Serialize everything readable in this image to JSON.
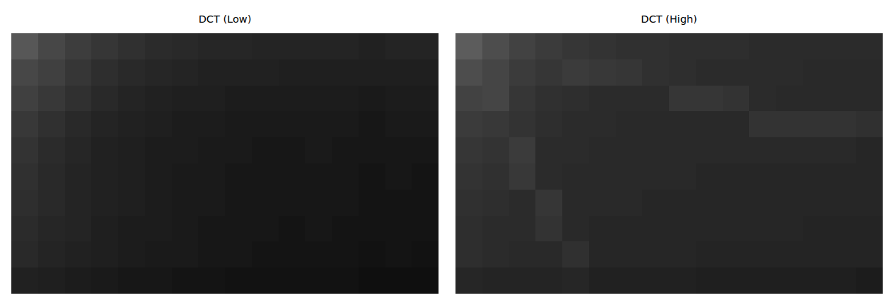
{
  "chart_data": [
    {
      "type": "heatmap",
      "title": "DCT (Low)",
      "color": "gray",
      "clim": [
        0,
        1
      ],
      "tick_labels": false,
      "cells": [
        [
          0.34,
          0.28,
          0.24,
          0.21,
          0.19,
          0.17,
          0.16,
          0.15,
          0.15,
          0.14,
          0.14,
          0.14,
          0.14,
          0.13,
          0.14,
          0.14
        ],
        [
          0.28,
          0.25,
          0.21,
          0.18,
          0.16,
          0.15,
          0.14,
          0.13,
          0.13,
          0.13,
          0.12,
          0.12,
          0.12,
          0.12,
          0.12,
          0.12
        ],
        [
          0.25,
          0.22,
          0.19,
          0.16,
          0.14,
          0.13,
          0.12,
          0.12,
          0.11,
          0.11,
          0.11,
          0.11,
          0.11,
          0.1,
          0.11,
          0.11
        ],
        [
          0.22,
          0.19,
          0.16,
          0.14,
          0.13,
          0.12,
          0.11,
          0.11,
          0.1,
          0.1,
          0.1,
          0.1,
          0.1,
          0.09,
          0.1,
          0.1
        ],
        [
          0.2,
          0.17,
          0.15,
          0.13,
          0.12,
          0.11,
          0.11,
          0.1,
          0.1,
          0.09,
          0.09,
          0.1,
          0.09,
          0.09,
          0.09,
          0.09
        ],
        [
          0.19,
          0.16,
          0.14,
          0.13,
          0.12,
          0.11,
          0.1,
          0.1,
          0.09,
          0.09,
          0.09,
          0.09,
          0.09,
          0.08,
          0.09,
          0.08
        ],
        [
          0.18,
          0.16,
          0.14,
          0.13,
          0.12,
          0.11,
          0.1,
          0.1,
          0.09,
          0.09,
          0.09,
          0.09,
          0.09,
          0.08,
          0.08,
          0.08
        ],
        [
          0.17,
          0.15,
          0.14,
          0.12,
          0.11,
          0.11,
          0.1,
          0.09,
          0.09,
          0.09,
          0.08,
          0.09,
          0.08,
          0.08,
          0.08,
          0.08
        ],
        [
          0.16,
          0.14,
          0.13,
          0.12,
          0.11,
          0.1,
          0.1,
          0.09,
          0.09,
          0.08,
          0.08,
          0.08,
          0.08,
          0.07,
          0.08,
          0.07
        ],
        [
          0.13,
          0.12,
          0.11,
          0.1,
          0.09,
          0.09,
          0.08,
          0.08,
          0.07,
          0.07,
          0.07,
          0.07,
          0.07,
          0.06,
          0.06,
          0.06
        ]
      ]
    },
    {
      "type": "heatmap",
      "title": "DCT (High)",
      "color": "gray",
      "clim": [
        0,
        1
      ],
      "tick_labels": false,
      "cells": [
        [
          0.36,
          0.3,
          0.26,
          0.23,
          0.21,
          0.2,
          0.19,
          0.19,
          0.18,
          0.18,
          0.18,
          0.17,
          0.17,
          0.17,
          0.17,
          0.17
        ],
        [
          0.3,
          0.27,
          0.23,
          0.21,
          0.23,
          0.22,
          0.21,
          0.19,
          0.18,
          0.17,
          0.17,
          0.17,
          0.17,
          0.16,
          0.16,
          0.16
        ],
        [
          0.26,
          0.27,
          0.21,
          0.19,
          0.18,
          0.17,
          0.17,
          0.17,
          0.21,
          0.21,
          0.2,
          0.17,
          0.16,
          0.16,
          0.16,
          0.16
        ],
        [
          0.23,
          0.22,
          0.2,
          0.18,
          0.17,
          0.17,
          0.16,
          0.16,
          0.16,
          0.16,
          0.16,
          0.2,
          0.2,
          0.2,
          0.2,
          0.19
        ],
        [
          0.21,
          0.2,
          0.23,
          0.17,
          0.17,
          0.16,
          0.16,
          0.16,
          0.16,
          0.16,
          0.16,
          0.16,
          0.16,
          0.16,
          0.16,
          0.15
        ],
        [
          0.2,
          0.19,
          0.22,
          0.17,
          0.16,
          0.16,
          0.16,
          0.16,
          0.16,
          0.15,
          0.15,
          0.15,
          0.15,
          0.15,
          0.15,
          0.15
        ],
        [
          0.19,
          0.18,
          0.17,
          0.21,
          0.16,
          0.16,
          0.16,
          0.15,
          0.15,
          0.15,
          0.15,
          0.15,
          0.15,
          0.15,
          0.15,
          0.15
        ],
        [
          0.18,
          0.17,
          0.17,
          0.2,
          0.16,
          0.15,
          0.15,
          0.15,
          0.15,
          0.15,
          0.15,
          0.15,
          0.15,
          0.14,
          0.14,
          0.14
        ],
        [
          0.18,
          0.17,
          0.16,
          0.16,
          0.19,
          0.15,
          0.15,
          0.15,
          0.15,
          0.14,
          0.14,
          0.14,
          0.14,
          0.14,
          0.14,
          0.14
        ],
        [
          0.15,
          0.14,
          0.14,
          0.14,
          0.15,
          0.13,
          0.13,
          0.13,
          0.13,
          0.12,
          0.12,
          0.12,
          0.12,
          0.12,
          0.12,
          0.11
        ]
      ]
    }
  ]
}
